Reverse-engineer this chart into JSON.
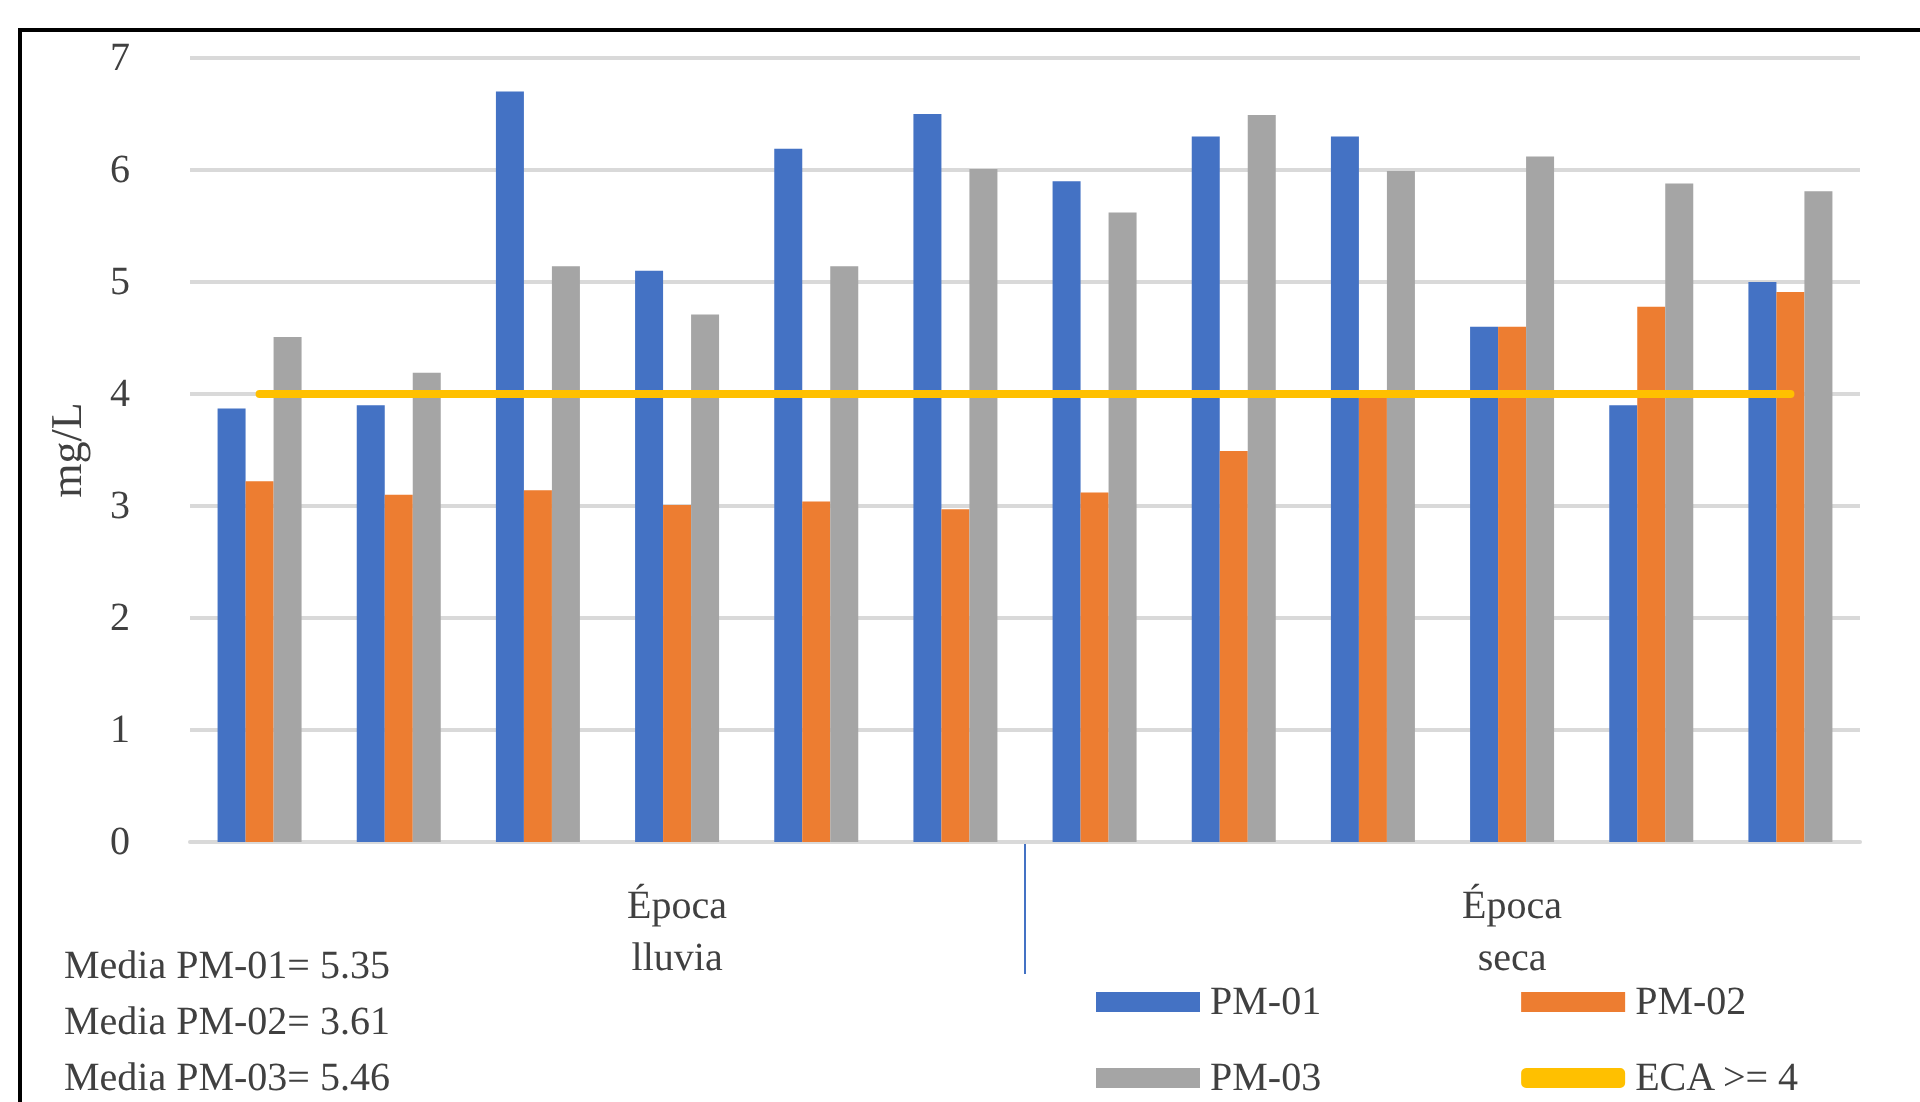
{
  "chart_data": {
    "type": "bar",
    "ylabel": "mg/L",
    "categories": [
      null,
      null,
      null,
      null,
      null,
      null,
      null,
      null,
      null,
      null,
      null,
      null
    ],
    "series": [
      {
        "name": "PM-01",
        "color": "#4472c4",
        "values": [
          3.87,
          3.9,
          6.7,
          5.1,
          6.19,
          6.5,
          5.9,
          6.3,
          6.3,
          4.6,
          3.9,
          5.0
        ]
      },
      {
        "name": "PM-02",
        "color": "#ed7d31",
        "values": [
          3.22,
          3.1,
          3.14,
          3.01,
          3.04,
          2.97,
          3.12,
          3.49,
          4.0,
          4.6,
          4.78,
          4.91
        ]
      },
      {
        "name": "PM-03",
        "color": "#a5a5a5",
        "values": [
          4.51,
          4.19,
          5.14,
          4.71,
          5.14,
          6.01,
          5.62,
          6.49,
          5.99,
          6.12,
          5.88,
          5.81
        ]
      }
    ],
    "ref_lines": [
      {
        "axis": "y",
        "value": 4,
        "label": "ECA >= 4",
        "color": "#ffc000"
      }
    ],
    "ylim": [
      0,
      7
    ],
    "yticks": [
      0,
      1,
      2,
      3,
      4,
      5,
      6,
      7
    ],
    "grid": "y",
    "legend": "bottom right",
    "annotations": [
      "Época lluvia",
      "Época seca",
      "Media PM-01= 5.35",
      "Media PM-02= 3.61",
      "Media PM-03= 5.46"
    ]
  }
}
